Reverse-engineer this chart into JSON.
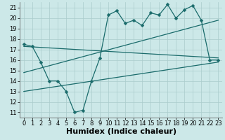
{
  "xlabel": "Humidex (Indice chaleur)",
  "bg_color": "#cce8e8",
  "grid_color": "#aacccc",
  "line_color": "#1a6b6b",
  "xlim": [
    -0.5,
    23.5
  ],
  "ylim": [
    10.5,
    21.5
  ],
  "yticks": [
    11,
    12,
    13,
    14,
    15,
    16,
    17,
    18,
    19,
    20,
    21
  ],
  "xticks": [
    0,
    1,
    2,
    3,
    4,
    5,
    6,
    7,
    8,
    9,
    10,
    11,
    12,
    13,
    14,
    15,
    16,
    17,
    18,
    19,
    20,
    21,
    22,
    23
  ],
  "line1_x": [
    0,
    1,
    2,
    3,
    4,
    5,
    6,
    7,
    8,
    9,
    10,
    11,
    12,
    13,
    14,
    15,
    16,
    17,
    18,
    19,
    20,
    21,
    22,
    23
  ],
  "line1_y": [
    17.5,
    17.3,
    15.8,
    14.0,
    14.0,
    13.0,
    11.0,
    11.2,
    14.0,
    16.2,
    20.3,
    20.7,
    19.5,
    19.8,
    19.3,
    20.5,
    20.3,
    21.3,
    20.0,
    20.8,
    21.2,
    19.8,
    16.0,
    16.0
  ],
  "line2_x": [
    0,
    23
  ],
  "line2_y": [
    17.3,
    16.2
  ],
  "line3_x": [
    0,
    23
  ],
  "line3_y": [
    14.8,
    19.8
  ],
  "line4_x": [
    0,
    23
  ],
  "line4_y": [
    13.0,
    15.8
  ],
  "markersize": 2.5,
  "linewidth": 0.9,
  "xlabel_fontsize": 8,
  "tick_fontsize": 6
}
